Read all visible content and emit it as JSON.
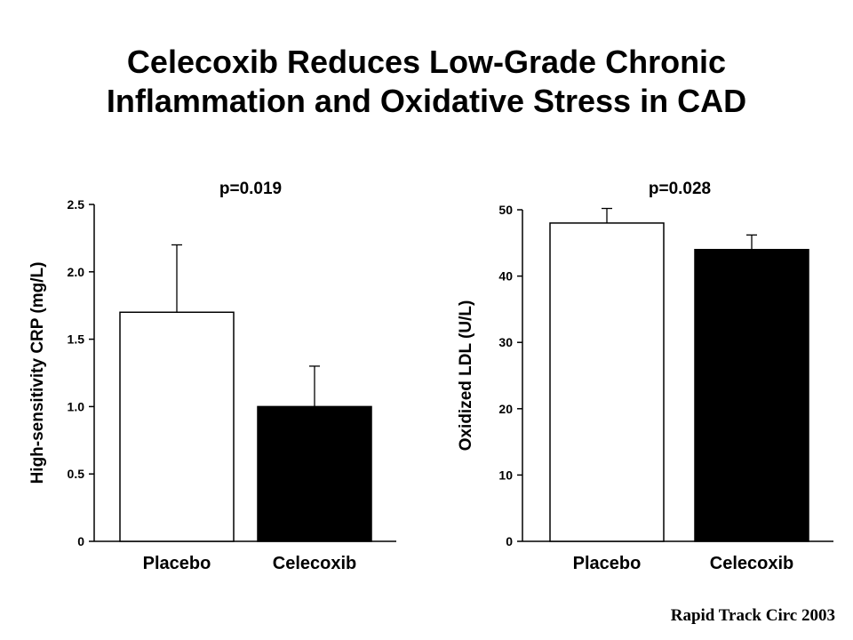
{
  "slide": {
    "title_line1": "Celecoxib Reduces Low-Grade Chronic",
    "title_line2": "Inflammation and Oxidative Stress in CAD",
    "citation": "Rapid Track Circ 2003"
  },
  "chart_data": [
    {
      "type": "bar",
      "title": "p=0.019",
      "ylabel": "High-sensitivity CRP (mg/L)",
      "categories": [
        "Placebo",
        "Celecoxib"
      ],
      "values": [
        1.7,
        1.0
      ],
      "error_upper": [
        2.2,
        1.3
      ],
      "bar_fill": [
        "#ffffff",
        "#000000"
      ],
      "ylim": [
        0,
        2.5
      ],
      "yticks": [
        0,
        0.5,
        1.0,
        1.5,
        2.0,
        2.5
      ],
      "ytick_labels": [
        "0",
        "0.5",
        "1.0",
        "1.5",
        "2.0",
        "2.5"
      ],
      "grid": false,
      "legend": "none"
    },
    {
      "type": "bar",
      "title": "p=0.028",
      "ylabel": "Oxidized LDL (U/L)",
      "categories": [
        "Placebo",
        "Celecoxib"
      ],
      "values": [
        48,
        44
      ],
      "error_upper": [
        50.2,
        46.2
      ],
      "bar_fill": [
        "#ffffff",
        "#000000"
      ],
      "ylim": [
        0,
        50
      ],
      "yticks": [
        0,
        10,
        20,
        30,
        40,
        50
      ],
      "ytick_labels": [
        "0",
        "10",
        "20",
        "30",
        "40",
        "50"
      ],
      "grid": false,
      "legend": "none"
    }
  ]
}
